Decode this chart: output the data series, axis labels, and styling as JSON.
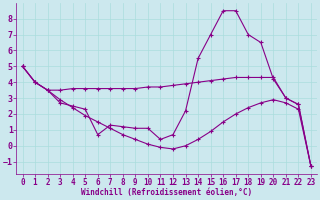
{
  "xlabel": "Windchill (Refroidissement éolien,°C)",
  "bg_color": "#cce8ee",
  "line_color": "#880088",
  "grid_color": "#aadddd",
  "ylim": [
    -1.8,
    9.0
  ],
  "xlim": [
    -0.5,
    23.5
  ],
  "yticks": [
    -1,
    0,
    1,
    2,
    3,
    4,
    5,
    6,
    7,
    8
  ],
  "xticks": [
    0,
    1,
    2,
    3,
    4,
    5,
    6,
    7,
    8,
    9,
    10,
    11,
    12,
    13,
    14,
    15,
    16,
    17,
    18,
    19,
    20,
    21,
    22,
    23
  ],
  "series1_x": [
    0,
    1,
    2,
    3,
    4,
    5,
    6,
    7,
    8,
    9,
    10,
    11,
    12,
    13,
    14,
    15,
    16,
    17,
    18,
    19,
    20,
    21,
    22,
    23
  ],
  "series1_y": [
    5.0,
    4.0,
    3.5,
    2.7,
    2.5,
    2.3,
    0.7,
    1.3,
    1.2,
    1.1,
    1.1,
    0.4,
    0.7,
    2.2,
    5.5,
    7.0,
    8.5,
    8.5,
    7.0,
    6.5,
    4.2,
    3.0,
    2.6,
    -1.3
  ],
  "series2_x": [
    0,
    1,
    2,
    3,
    4,
    5,
    6,
    7,
    8,
    9,
    10,
    11,
    12,
    13,
    14,
    15,
    16,
    17,
    18,
    19,
    20,
    21,
    22,
    23
  ],
  "series2_y": [
    5.0,
    4.0,
    3.5,
    3.5,
    3.6,
    3.6,
    3.6,
    3.6,
    3.6,
    3.6,
    3.7,
    3.7,
    3.8,
    3.9,
    4.0,
    4.1,
    4.2,
    4.3,
    4.3,
    4.3,
    4.3,
    3.0,
    2.6,
    -1.3
  ],
  "series3_x": [
    0,
    1,
    2,
    3,
    4,
    5,
    6,
    7,
    8,
    9,
    10,
    11,
    12,
    13,
    14,
    15,
    16,
    17,
    18,
    19,
    20,
    21,
    22,
    23
  ],
  "series3_y": [
    5.0,
    4.0,
    3.5,
    2.9,
    2.4,
    1.9,
    1.5,
    1.1,
    0.7,
    0.4,
    0.1,
    -0.1,
    -0.2,
    -0.0,
    0.4,
    0.9,
    1.5,
    2.0,
    2.4,
    2.7,
    2.9,
    2.7,
    2.3,
    -1.3
  ],
  "tick_fontsize": 5.5,
  "xlabel_fontsize": 5.5
}
